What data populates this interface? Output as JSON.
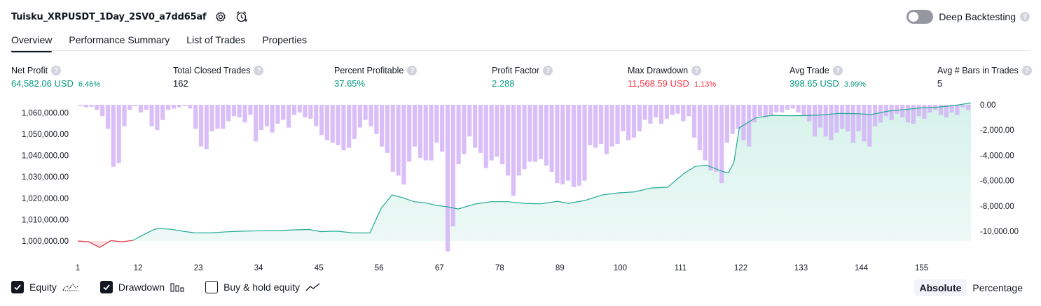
{
  "header": {
    "title": "Tuisku_XRPUSDT_1Day_2SV0_a7dd65af",
    "deep_backtesting": "Deep Backtesting",
    "help": "?"
  },
  "tabs": [
    "Overview",
    "Performance Summary",
    "List of Trades",
    "Properties"
  ],
  "metrics": {
    "net_profit": {
      "label": "Net Profit",
      "value": "64,582.06 USD",
      "pct": "6.46%"
    },
    "total_closed_trades": {
      "label": "Total Closed Trades",
      "value": "162"
    },
    "percent_profitable": {
      "label": "Percent Profitable",
      "value": "37.65%"
    },
    "profit_factor": {
      "label": "Profit Factor",
      "value": "2.288"
    },
    "max_drawdown": {
      "label": "Max Drawdown",
      "value": "11,568.59 USD",
      "pct": "1.13%"
    },
    "avg_trade": {
      "label": "Avg Trade",
      "value": "398.65 USD",
      "pct": "3.99%"
    },
    "avg_bars": {
      "label": "Avg # Bars in Trades",
      "value": "5"
    }
  },
  "legend": {
    "equity": "Equity",
    "drawdown": "Drawdown",
    "buy_hold": "Buy & hold equity"
  },
  "modes": {
    "absolute": "Absolute",
    "percentage": "Percentage"
  },
  "colors": {
    "equity_line": "#22ab94",
    "equity_fill": "#d6f2ea",
    "equity_negative": "#f23645",
    "drawdown_bar": "#d4b3f7",
    "text": "#131722"
  },
  "chart_data": {
    "type": "area",
    "x_ticks": [
      1,
      12,
      23,
      34,
      45,
      56,
      67,
      78,
      89,
      100,
      111,
      122,
      133,
      144,
      155
    ],
    "left_axis_ticks": [
      "1,000,000.00",
      "1,010,000.00",
      "1,020,000.00",
      "1,030,000.00",
      "1,040,000.00",
      "1,050,000.00",
      "1,060,000.00"
    ],
    "left_ylim": [
      995000,
      1066000
    ],
    "right_axis_ticks": [
      "0.00",
      "-2,000.00",
      "-4,000.00",
      "-6,000.00",
      "-8,000.00",
      "-10,000.00"
    ],
    "right_ylim": [
      -11800,
      0
    ],
    "series": [
      {
        "name": "Equity",
        "x": [
          1,
          3,
          5,
          7,
          9,
          11,
          13,
          15,
          16,
          18,
          20,
          22,
          25,
          28,
          31,
          34,
          37,
          40,
          43,
          45,
          48,
          51,
          54,
          56,
          58,
          60,
          62,
          64,
          66,
          68,
          70,
          73,
          76,
          79,
          82,
          85,
          88,
          90,
          93,
          96,
          99,
          102,
          105,
          108,
          111,
          113,
          115,
          118,
          119,
          120,
          121,
          124,
          127,
          130,
          133,
          136,
          139,
          142,
          145,
          148,
          151,
          154,
          157,
          160,
          163
        ],
        "values": [
          1000000,
          999600,
          997000,
          1000200,
          999600,
          1000300,
          1003000,
          1005600,
          1005800,
          1005500,
          1004600,
          1003900,
          1003800,
          1004300,
          1004600,
          1004800,
          1004900,
          1005200,
          1005400,
          1004400,
          1004600,
          1003800,
          1003800,
          1015200,
          1021600,
          1020200,
          1018400,
          1017900,
          1016700,
          1016000,
          1015000,
          1017300,
          1018400,
          1018400,
          1017600,
          1017400,
          1018600,
          1017600,
          1019000,
          1021500,
          1022500,
          1023000,
          1024800,
          1025200,
          1031700,
          1034900,
          1035500,
          1032500,
          1031900,
          1036800,
          1053000,
          1057700,
          1058800,
          1058600,
          1058700,
          1059000,
          1059700,
          1059600,
          1059200,
          1060800,
          1061500,
          1062300,
          1062600,
          1063400,
          1064600
        ]
      },
      {
        "name": "Drawdown",
        "values": [
          -100,
          -200,
          -150,
          -400,
          -900,
          -1900,
          -4900,
          -4600,
          -1700,
          -400,
          -100,
          -600,
          -400,
          -1700,
          -2000,
          -1200,
          -400,
          -300,
          -200,
          -100,
          -300,
          -1900,
          -3300,
          -3500,
          -2100,
          -1900,
          -1900,
          -1300,
          -900,
          -1000,
          -1400,
          -800,
          -2900,
          -2000,
          -1700,
          -2200,
          -1500,
          -1200,
          -1800,
          -800,
          -600,
          -1000,
          -1100,
          -1700,
          -2400,
          -2800,
          -3000,
          -3200,
          -3600,
          -3400,
          -2700,
          -1800,
          -1200,
          -1700,
          -2300,
          -3300,
          -3800,
          -5300,
          -5600,
          -6300,
          -4500,
          -3300,
          -4200,
          -4400,
          -4400,
          -3000,
          -3700,
          -11600,
          -9600,
          -4700,
          -3900,
          -2500,
          -3400,
          -3800,
          -5000,
          -4400,
          -4100,
          -4700,
          -5600,
          -7200,
          -5600,
          -5100,
          -4500,
          -4500,
          -4300,
          -4800,
          -5300,
          -6200,
          -6300,
          -6000,
          -6500,
          -6400,
          -6000,
          -3200,
          -3400,
          -3100,
          -3900,
          -3300,
          -3100,
          -2100,
          -2800,
          -2600,
          -2100,
          -1200,
          -1500,
          -1000,
          -1500,
          -1100,
          -800,
          -700,
          -1300,
          -900,
          -2600,
          -3600,
          -4400,
          -5200,
          -5300,
          -6200,
          -3000,
          -2300,
          -1900,
          -2800,
          -3300,
          -1400,
          -900,
          -1000,
          -800,
          -600,
          -600,
          -400,
          -300,
          -600,
          -900,
          -1300,
          -2500,
          -1800,
          -2500,
          -2800,
          -2200,
          -1900,
          -2100,
          -3000,
          -2100,
          -2900,
          -3300,
          -1700,
          -1400,
          -900,
          -1200,
          -700,
          -1000,
          -1400,
          -1500,
          -900,
          -1100,
          -600,
          -400,
          -800,
          -1000,
          -600,
          -800,
          -200,
          -400
        ]
      }
    ]
  }
}
